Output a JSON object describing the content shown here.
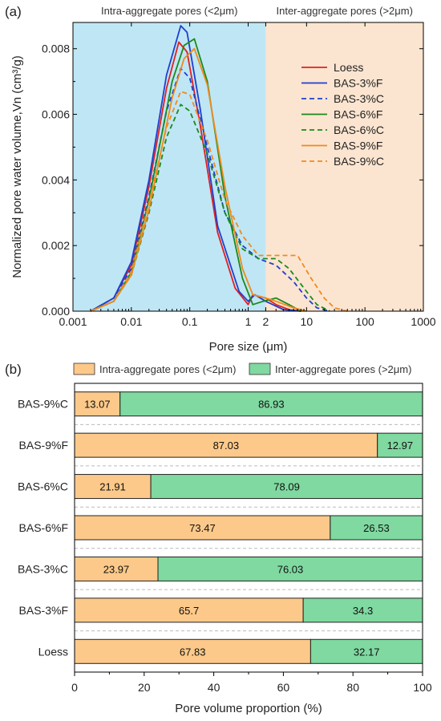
{
  "chart_data": [
    {
      "type": "line",
      "panel_label": "(a)",
      "xlabel": "Pore size (μm)",
      "ylabel": "Normalized pore water volume,Vn (cm³/g)",
      "xscale": "log",
      "xlim": [
        0.001,
        1000
      ],
      "ylim": [
        0,
        0.0088
      ],
      "x_ticks": [
        "0.001",
        "0.01",
        "0.1",
        "1",
        "2",
        "10",
        "100",
        "1000"
      ],
      "y_ticks": [
        "0.000",
        "0.002",
        "0.004",
        "0.006",
        "0.008"
      ],
      "regions": [
        {
          "label": "Intra-aggregate pores (<2μm)",
          "from": 0.001,
          "to": 2,
          "color": "#bfe6f5"
        },
        {
          "label": "Inter-aggregate pores (>2μm)",
          "from": 2,
          "to": 1000,
          "color": "#fbe5d0"
        }
      ],
      "legend_position": "right",
      "series": [
        {
          "name": "Loess",
          "color": "#e02020",
          "dash": false,
          "points": [
            [
              0.002,
              0
            ],
            [
              0.005,
              0.0004
            ],
            [
              0.01,
              0.0014
            ],
            [
              0.02,
              0.0038
            ],
            [
              0.04,
              0.0068
            ],
            [
              0.065,
              0.0082
            ],
            [
              0.09,
              0.0079
            ],
            [
              0.15,
              0.0057
            ],
            [
              0.3,
              0.0024
            ],
            [
              0.6,
              0.0007
            ],
            [
              1,
              0.0002
            ],
            [
              1.2,
              0.0005
            ],
            [
              2,
              0.0004
            ],
            [
              3,
              0.0002
            ],
            [
              5,
              5e-05
            ],
            [
              8,
              0
            ]
          ]
        },
        {
          "name": "BAS-3%F",
          "color": "#1f3fd0",
          "dash": false,
          "points": [
            [
              0.002,
              0
            ],
            [
              0.005,
              0.0004
            ],
            [
              0.01,
              0.0015
            ],
            [
              0.02,
              0.004
            ],
            [
              0.04,
              0.0072
            ],
            [
              0.07,
              0.0087
            ],
            [
              0.09,
              0.0085
            ],
            [
              0.15,
              0.0062
            ],
            [
              0.3,
              0.0026
            ],
            [
              0.7,
              0.0006
            ],
            [
              1,
              0.0003
            ],
            [
              1.3,
              0.0005
            ],
            [
              2,
              0.0003
            ],
            [
              4,
              5e-05
            ],
            [
              8,
              0
            ]
          ]
        },
        {
          "name": "BAS-3%C",
          "color": "#1f3fd0",
          "dash": true,
          "points": [
            [
              0.002,
              0
            ],
            [
              0.005,
              0.0004
            ],
            [
              0.01,
              0.0013
            ],
            [
              0.02,
              0.0035
            ],
            [
              0.04,
              0.0061
            ],
            [
              0.07,
              0.0074
            ],
            [
              0.1,
              0.0071
            ],
            [
              0.2,
              0.005
            ],
            [
              0.4,
              0.003
            ],
            [
              0.8,
              0.002
            ],
            [
              1.5,
              0.0016
            ],
            [
              3,
              0.0014
            ],
            [
              6,
              0.0009
            ],
            [
              10,
              0.0004
            ],
            [
              15,
              0.0001
            ],
            [
              25,
              0
            ]
          ]
        },
        {
          "name": "BAS-6%F",
          "color": "#1a8a1a",
          "dash": false,
          "points": [
            [
              0.002,
              0
            ],
            [
              0.005,
              0.0003
            ],
            [
              0.01,
              0.0012
            ],
            [
              0.02,
              0.0034
            ],
            [
              0.05,
              0.007
            ],
            [
              0.08,
              0.0081
            ],
            [
              0.12,
              0.0083
            ],
            [
              0.2,
              0.007
            ],
            [
              0.4,
              0.0035
            ],
            [
              0.8,
              0.001
            ],
            [
              1.2,
              0.0002
            ],
            [
              1.8,
              0.0003
            ],
            [
              3,
              0.0004
            ],
            [
              5,
              0.0002
            ],
            [
              8,
              0
            ]
          ]
        },
        {
          "name": "BAS-6%C",
          "color": "#1a8a1a",
          "dash": true,
          "points": [
            [
              0.002,
              0
            ],
            [
              0.005,
              0.0003
            ],
            [
              0.01,
              0.0011
            ],
            [
              0.02,
              0.003
            ],
            [
              0.04,
              0.0053
            ],
            [
              0.07,
              0.0063
            ],
            [
              0.1,
              0.0061
            ],
            [
              0.2,
              0.0048
            ],
            [
              0.4,
              0.003
            ],
            [
              0.8,
              0.0019
            ],
            [
              1.5,
              0.0016
            ],
            [
              3,
              0.0016
            ],
            [
              5,
              0.0013
            ],
            [
              10,
              0.0006
            ],
            [
              15,
              0.0002
            ],
            [
              25,
              0
            ]
          ]
        },
        {
          "name": "BAS-9%F",
          "color": "#f08a1c",
          "dash": false,
          "points": [
            [
              0.002,
              0
            ],
            [
              0.005,
              0.0003
            ],
            [
              0.01,
              0.0011
            ],
            [
              0.02,
              0.0031
            ],
            [
              0.05,
              0.0065
            ],
            [
              0.08,
              0.0077
            ],
            [
              0.12,
              0.008
            ],
            [
              0.2,
              0.0069
            ],
            [
              0.4,
              0.0038
            ],
            [
              0.8,
              0.0013
            ],
            [
              1.2,
              0.0005
            ],
            [
              2,
              0.0004
            ],
            [
              3,
              0.0003
            ],
            [
              6,
              0.0001
            ],
            [
              10,
              0
            ]
          ]
        },
        {
          "name": "BAS-9%C",
          "color": "#f08a1c",
          "dash": true,
          "points": [
            [
              0.002,
              0
            ],
            [
              0.005,
              0.0003
            ],
            [
              0.01,
              0.0012
            ],
            [
              0.02,
              0.0033
            ],
            [
              0.04,
              0.0056
            ],
            [
              0.07,
              0.0067
            ],
            [
              0.1,
              0.0066
            ],
            [
              0.2,
              0.0052
            ],
            [
              0.4,
              0.0034
            ],
            [
              0.8,
              0.0023
            ],
            [
              1.5,
              0.0017
            ],
            [
              3,
              0.0017
            ],
            [
              7,
              0.0017
            ],
            [
              12,
              0.001
            ],
            [
              20,
              0.0004
            ],
            [
              30,
              0.0001
            ],
            [
              50,
              0
            ]
          ]
        }
      ]
    },
    {
      "type": "bar",
      "orientation": "horizontal",
      "stacked": true,
      "panel_label": "(b)",
      "xlabel": "Pore volume proportion (%)",
      "xlim": [
        0,
        100
      ],
      "x_ticks": [
        "0",
        "20",
        "40",
        "60",
        "80",
        "100"
      ],
      "legend_position": "top",
      "categories": [
        "BAS-9%C",
        "BAS-9%F",
        "BAS-6%C",
        "BAS-6%F",
        "BAS-3%C",
        "BAS-3%F",
        "Loess"
      ],
      "series": [
        {
          "name": "Intra-aggregate pores (<2μm)",
          "color": "#fcc98a",
          "values": [
            13.07,
            87.03,
            21.91,
            73.47,
            23.97,
            65.7,
            67.83
          ],
          "labels": [
            "13.07",
            "87.03",
            "21.91",
            "73.47",
            "23.97",
            "65.7",
            "67.83"
          ]
        },
        {
          "name": "Inter-aggregate pores (>2μm)",
          "color": "#7fd9a0",
          "values": [
            86.93,
            12.97,
            78.09,
            26.53,
            76.03,
            34.3,
            32.17
          ],
          "labels": [
            "86.93",
            "12.97",
            "78.09",
            "26.53",
            "76.03",
            "34.3",
            "32.17"
          ]
        }
      ]
    }
  ]
}
